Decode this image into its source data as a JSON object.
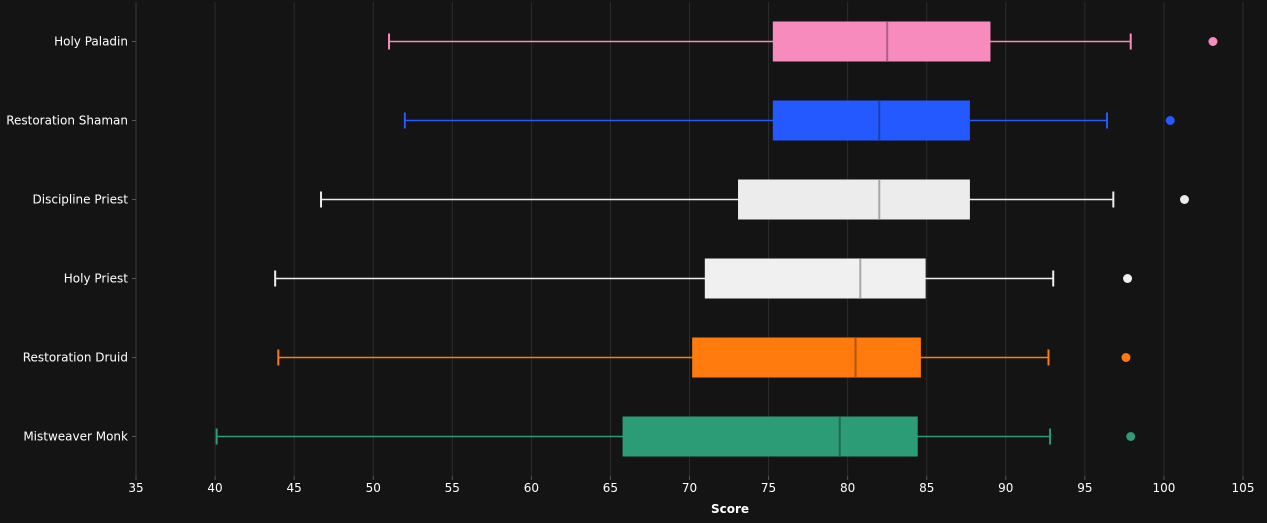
{
  "chart_data": {
    "type": "box",
    "orientation": "horizontal",
    "xlabel": "Score",
    "ylabel": "",
    "xlim": [
      35,
      105
    ],
    "xticks": [
      35,
      40,
      45,
      50,
      55,
      60,
      65,
      70,
      75,
      80,
      85,
      90,
      95,
      100,
      105
    ],
    "grid": true,
    "categories": [
      "Holy Paladin",
      "Restoration Shaman",
      "Discipline Priest",
      "Holy Priest",
      "Restoration Druid",
      "Mistweaver Monk"
    ],
    "series": [
      {
        "category": "Holy Paladin",
        "whisker_low": 51.0,
        "q1": 75.3,
        "median": 82.5,
        "q3": 89.0,
        "whisker_high": 97.9,
        "outliers": [
          103.1
        ],
        "color": "#f78bbe",
        "median_color": "#b06080"
      },
      {
        "category": "Restoration Shaman",
        "whisker_low": 52.0,
        "q1": 75.3,
        "median": 82.0,
        "q3": 87.7,
        "whisker_high": 96.4,
        "outliers": [
          100.4
        ],
        "color": "#2459ff",
        "median_color": "#1a3fb0"
      },
      {
        "category": "Discipline Priest",
        "whisker_low": 46.7,
        "q1": 73.1,
        "median": 82.0,
        "q3": 87.7,
        "whisker_high": 96.8,
        "outliers": [
          101.3
        ],
        "color": "#ececec",
        "median_color": "#a8a8a8"
      },
      {
        "category": "Holy Priest",
        "whisker_low": 43.8,
        "q1": 71.0,
        "median": 80.8,
        "q3": 84.9,
        "whisker_high": 93.0,
        "outliers": [
          97.7
        ],
        "color": "#f0f0f0",
        "median_color": "#a8a8a8"
      },
      {
        "category": "Restoration Druid",
        "whisker_low": 44.0,
        "q1": 70.2,
        "median": 80.5,
        "q3": 84.6,
        "whisker_high": 92.7,
        "outliers": [
          97.6
        ],
        "color": "#ff7b0e",
        "median_color": "#b05508"
      },
      {
        "category": "Mistweaver Monk",
        "whisker_low": 40.1,
        "q1": 65.8,
        "median": 79.5,
        "q3": 84.4,
        "whisker_high": 92.8,
        "outliers": [
          97.9
        ],
        "color": "#2b9c76",
        "median_color": "#1d6b51"
      }
    ]
  }
}
